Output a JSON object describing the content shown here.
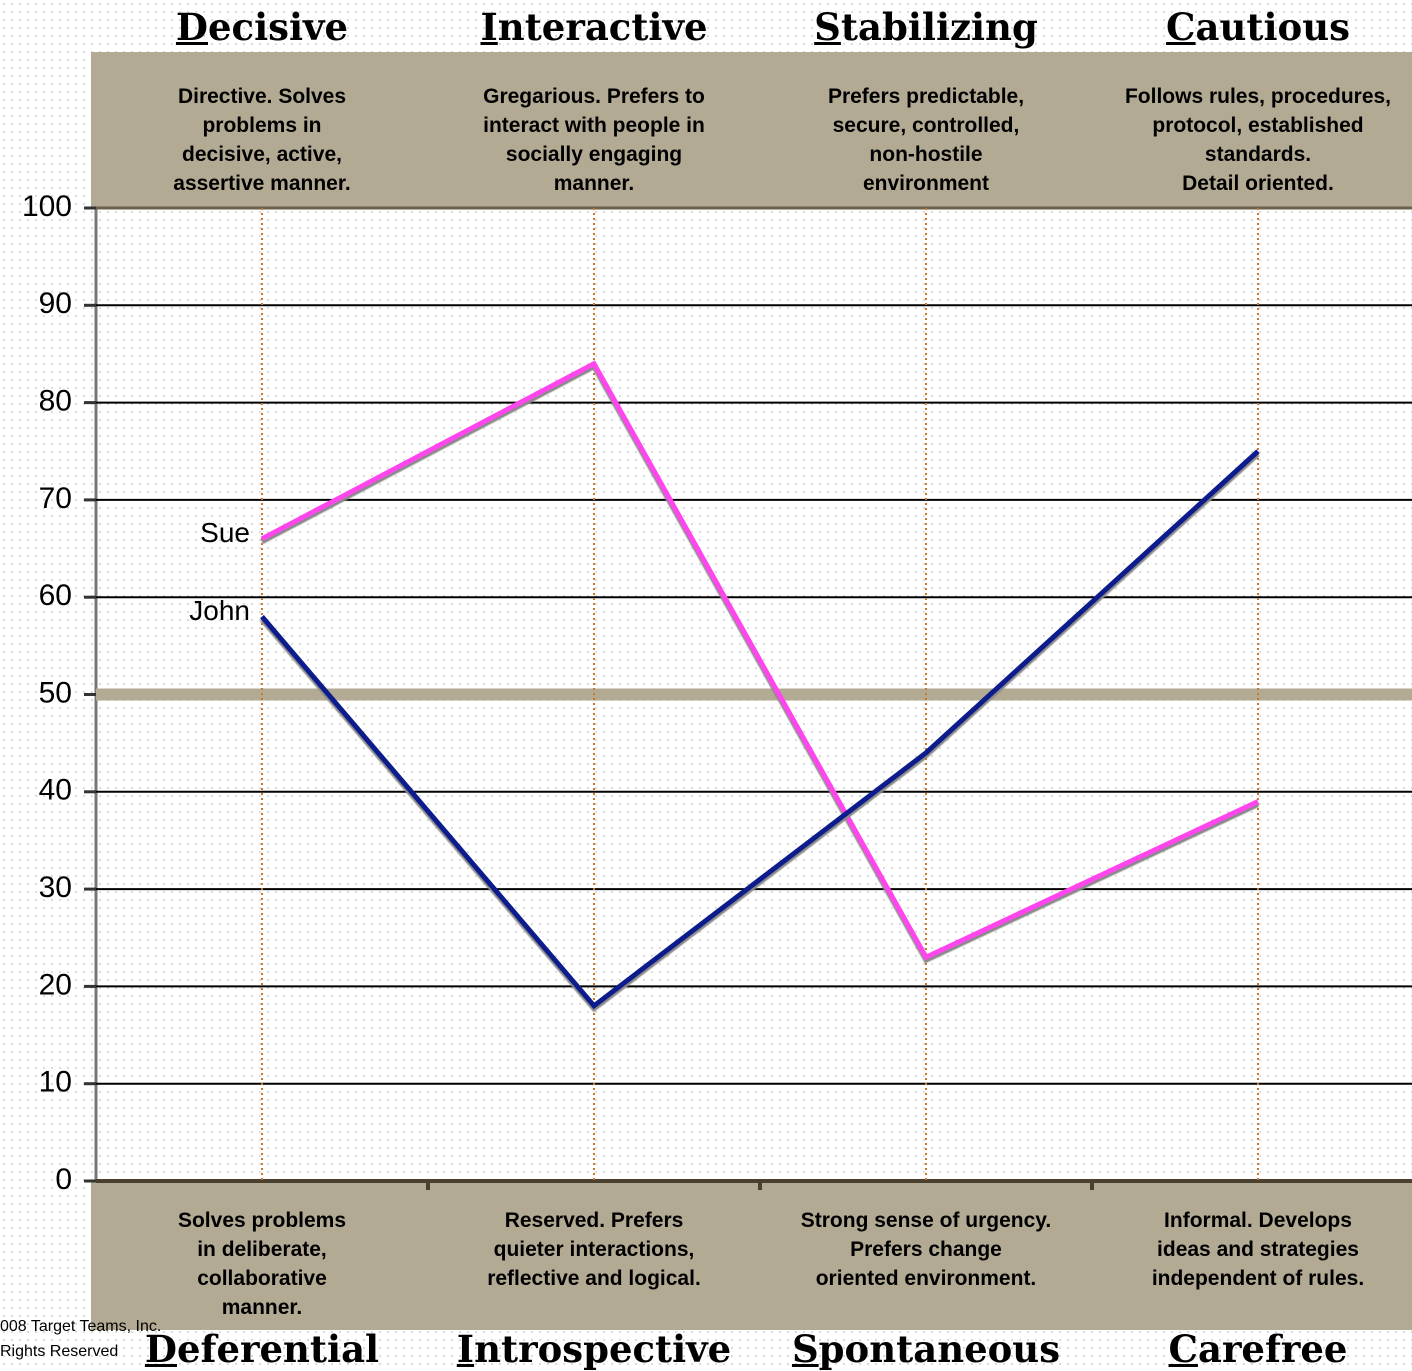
{
  "chart_data": {
    "type": "line",
    "categories": [
      "Decisive",
      "Interactive",
      "Stabilizing",
      "Cautious"
    ],
    "descriptions": [
      "Directive. Solves\nproblems in\ndecisive, active,\nassertive manner.",
      "Gregarious. Prefers to\ninteract with people in\nsocially engaging\nmanner.",
      "Prefers predictable,\nsecure, controlled,\nnon-hostile\nenvironment",
      "Follows rules, procedures,\nprotocol, established\nstandards.\nDetail oriented."
    ],
    "bottom_categories": [
      "Deferential",
      "Introspective",
      "Spontaneous",
      "Carefree"
    ],
    "bottom_descriptions": [
      "Solves problems\nin deliberate,\ncollaborative\nmanner.",
      "Reserved. Prefers\nquieter interactions,\nreflective and logical.",
      "Strong sense of urgency.\nPrefers change\noriented environment.",
      "Informal. Develops\nideas and strategies\nindependent of rules."
    ],
    "series": [
      {
        "name": "Sue",
        "color": "#ff44ee",
        "values": [
          66,
          84,
          23,
          39
        ]
      },
      {
        "name": "John",
        "color": "#0a1a8c",
        "values": [
          58,
          18,
          44,
          75
        ]
      }
    ],
    "ylim": [
      0,
      100
    ],
    "yticks": [
      0,
      10,
      20,
      30,
      40,
      50,
      60,
      70,
      80,
      90,
      100
    ],
    "midline": 50,
    "grid": true,
    "footnote": [
      "008 Target Teams, Inc.",
      "Rights Reserved"
    ]
  }
}
